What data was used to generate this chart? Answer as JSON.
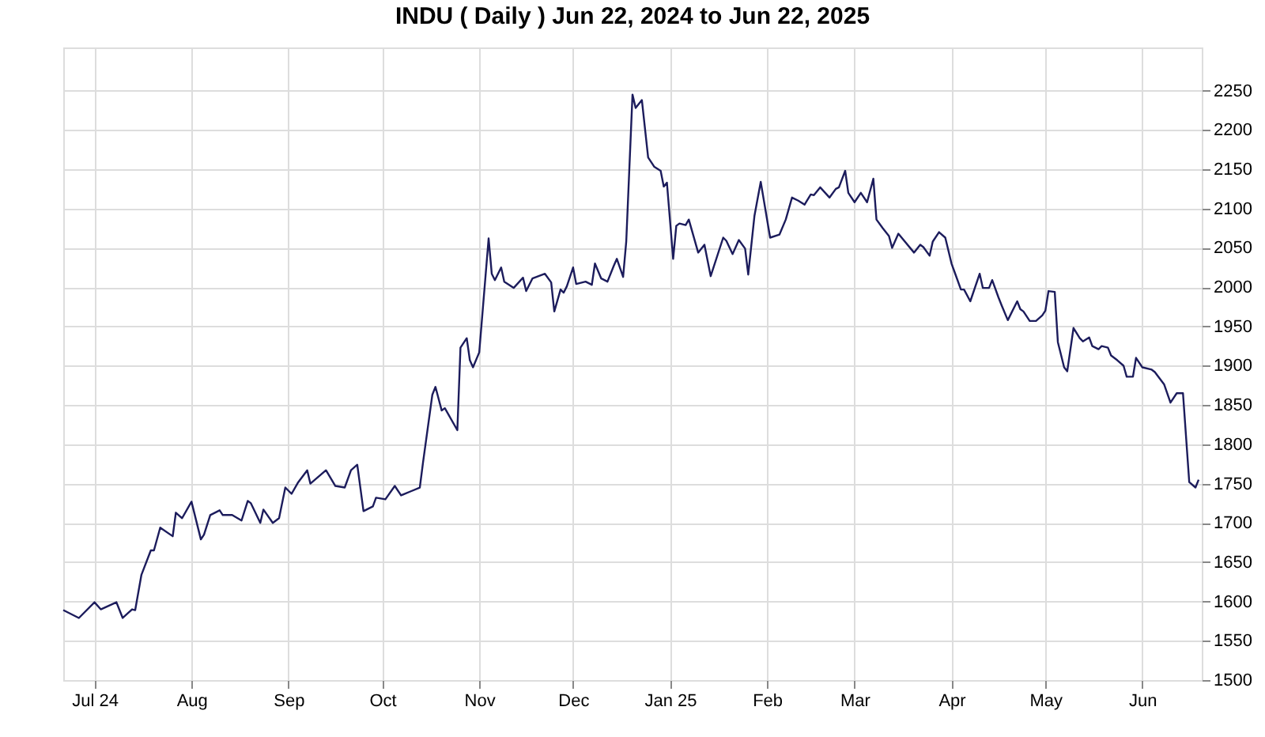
{
  "chart_data": {
    "type": "line",
    "title": "INDU ( Daily ) Jun 22, 2024 to Jun 22, 2025",
    "x": [
      "2024-06-21",
      "2024-06-26",
      "2024-07-01",
      "2024-07-03",
      "2024-07-08",
      "2024-07-10",
      "2024-07-13",
      "2024-07-14",
      "2024-07-16",
      "2024-07-19",
      "2024-07-20",
      "2024-07-22",
      "2024-07-26",
      "2024-07-27",
      "2024-07-29",
      "2024-08-01",
      "2024-08-04",
      "2024-08-05",
      "2024-08-07",
      "2024-08-10",
      "2024-08-11",
      "2024-08-14",
      "2024-08-17",
      "2024-08-19",
      "2024-08-20",
      "2024-08-23",
      "2024-08-24",
      "2024-08-27",
      "2024-08-29",
      "2024-08-31",
      "2024-09-02",
      "2024-09-04",
      "2024-09-07",
      "2024-09-08",
      "2024-09-13",
      "2024-09-16",
      "2024-09-19",
      "2024-09-21",
      "2024-09-23",
      "2024-09-25",
      "2024-09-28",
      "2024-09-29",
      "2024-10-02",
      "2024-10-05",
      "2024-10-07",
      "2024-10-10",
      "2024-10-13",
      "2024-10-14",
      "2024-10-17",
      "2024-10-18",
      "2024-10-20",
      "2024-10-21",
      "2024-10-25",
      "2024-10-26",
      "2024-10-28",
      "2024-10-29",
      "2024-10-30",
      "2024-11-01",
      "2024-11-04",
      "2024-11-05",
      "2024-11-06",
      "2024-11-08",
      "2024-11-09",
      "2024-11-12",
      "2024-11-15",
      "2024-11-16",
      "2024-11-18",
      "2024-11-22",
      "2024-11-24",
      "2024-11-25",
      "2024-11-27",
      "2024-11-28",
      "2024-11-29",
      "2024-12-01",
      "2024-12-02",
      "2024-12-05",
      "2024-12-07",
      "2024-12-08",
      "2024-12-10",
      "2024-12-12",
      "2024-12-14",
      "2024-12-15",
      "2024-12-17",
      "2024-12-18",
      "2024-12-20",
      "2024-12-21",
      "2024-12-23",
      "2024-12-25",
      "2024-12-27",
      "2024-12-29",
      "2024-12-30",
      "2024-12-31",
      "2025-01-02",
      "2025-01-03",
      "2025-01-04",
      "2025-01-06",
      "2025-01-07",
      "2025-01-10",
      "2025-01-12",
      "2025-01-14",
      "2025-01-18",
      "2025-01-19",
      "2025-01-21",
      "2025-01-23",
      "2025-01-25",
      "2025-01-26",
      "2025-01-28",
      "2025-01-30",
      "2025-02-02",
      "2025-02-05",
      "2025-02-07",
      "2025-02-09",
      "2025-02-11",
      "2025-02-13",
      "2025-02-15",
      "2025-02-16",
      "2025-02-18",
      "2025-02-21",
      "2025-02-23",
      "2025-02-24",
      "2025-02-26",
      "2025-02-27",
      "2025-03-01",
      "2025-03-03",
      "2025-03-05",
      "2025-03-07",
      "2025-03-08",
      "2025-03-10",
      "2025-03-12",
      "2025-03-13",
      "2025-03-15",
      "2025-03-20",
      "2025-03-22",
      "2025-03-23",
      "2025-03-25",
      "2025-03-26",
      "2025-03-28",
      "2025-03-30",
      "2025-04-01",
      "2025-04-02",
      "2025-04-04",
      "2025-04-05",
      "2025-04-07",
      "2025-04-10",
      "2025-04-11",
      "2025-04-13",
      "2025-04-14",
      "2025-04-16",
      "2025-04-17",
      "2025-04-19",
      "2025-04-20",
      "2025-04-22",
      "2025-04-23",
      "2025-04-24",
      "2025-04-26",
      "2025-04-28",
      "2025-04-30",
      "2025-05-01",
      "2025-05-02",
      "2025-05-04",
      "2025-05-05",
      "2025-05-07",
      "2025-05-08",
      "2025-05-10",
      "2025-05-12",
      "2025-05-13",
      "2025-05-15",
      "2025-05-16",
      "2025-05-18",
      "2025-05-19",
      "2025-05-21",
      "2025-05-22",
      "2025-05-24",
      "2025-05-26",
      "2025-05-27",
      "2025-05-29",
      "2025-05-30",
      "2025-06-01",
      "2025-06-04",
      "2025-06-05",
      "2025-06-08",
      "2025-06-10",
      "2025-06-12",
      "2025-06-14",
      "2025-06-16",
      "2025-06-18",
      "2025-06-19"
    ],
    "series": [
      {
        "color": "#1c1c5c",
        "values": [
          1589,
          1579,
          1599,
          1590,
          1599,
          1579,
          1590,
          1589,
          1634,
          1665,
          1665,
          1694,
          1683,
          1713,
          1706,
          1727,
          1679,
          1685,
          1710,
          1716,
          1710,
          1710,
          1703,
          1728,
          1725,
          1700,
          1717,
          1700,
          1706,
          1745,
          1737,
          1751,
          1767,
          1750,
          1767,
          1747,
          1745,
          1767,
          1774,
          1715,
          1721,
          1732,
          1730,
          1747,
          1735,
          1740,
          1745,
          1776,
          1863,
          1873,
          1843,
          1846,
          1818,
          1923,
          1935,
          1907,
          1898,
          1917,
          2062,
          2017,
          2009,
          2025,
          2007,
          1999,
          2012,
          1995,
          2011,
          2017,
          2006,
          1969,
          1997,
          1993,
          2001,
          2025,
          2004,
          2007,
          2003,
          2030,
          2011,
          2007,
          2027,
          2036,
          2013,
          2058,
          2245,
          2228,
          2238,
          2165,
          2153,
          2148,
          2128,
          2133,
          2036,
          2078,
          2081,
          2079,
          2086,
          2044,
          2054,
          2014,
          2063,
          2059,
          2042,
          2060,
          2049,
          2016,
          2091,
          2134,
          2063,
          2067,
          2086,
          2114,
          2110,
          2105,
          2118,
          2117,
          2127,
          2114,
          2125,
          2127,
          2148,
          2120,
          2108,
          2120,
          2108,
          2138,
          2086,
          2075,
          2065,
          2050,
          2068,
          2044,
          2054,
          2051,
          2040,
          2058,
          2070,
          2063,
          2030,
          2019,
          1997,
          1997,
          1982,
          2017,
          1999,
          1999,
          2009,
          1987,
          1977,
          1958,
          1966,
          1982,
          1972,
          1969,
          1957,
          1957,
          1964,
          1970,
          1995,
          1994,
          1930,
          1898,
          1893,
          1948,
          1935,
          1931,
          1936,
          1925,
          1921,
          1925,
          1923,
          1913,
          1907,
          1900,
          1886,
          1886,
          1910,
          1898,
          1895,
          1892,
          1876,
          1853,
          1865,
          1865,
          1752,
          1745,
          1755
        ]
      }
    ],
    "xlim": [
      "2024-06-21",
      "2025-06-20"
    ],
    "xticks": [
      {
        "value": "2024-07-01",
        "label": "Jul 24"
      },
      {
        "value": "2024-08-01",
        "label": "Aug"
      },
      {
        "value": "2024-09-01",
        "label": "Sep"
      },
      {
        "value": "2024-10-01",
        "label": "Oct"
      },
      {
        "value": "2024-11-01",
        "label": "Nov"
      },
      {
        "value": "2024-12-01",
        "label": "Dec"
      },
      {
        "value": "2025-01-01",
        "label": "Jan 25"
      },
      {
        "value": "2025-02-01",
        "label": "Feb"
      },
      {
        "value": "2025-03-01",
        "label": "Mar"
      },
      {
        "value": "2025-04-01",
        "label": "Apr"
      },
      {
        "value": "2025-05-01",
        "label": "May"
      },
      {
        "value": "2025-06-01",
        "label": "Jun"
      }
    ],
    "ylim": [
      1500,
      2305
    ],
    "yticks": [
      1500,
      1550,
      1600,
      1650,
      1700,
      1750,
      1800,
      1850,
      1900,
      1950,
      2000,
      2050,
      2100,
      2150,
      2200,
      2250
    ],
    "grid": true,
    "marker": "none",
    "line_style": "solid"
  }
}
